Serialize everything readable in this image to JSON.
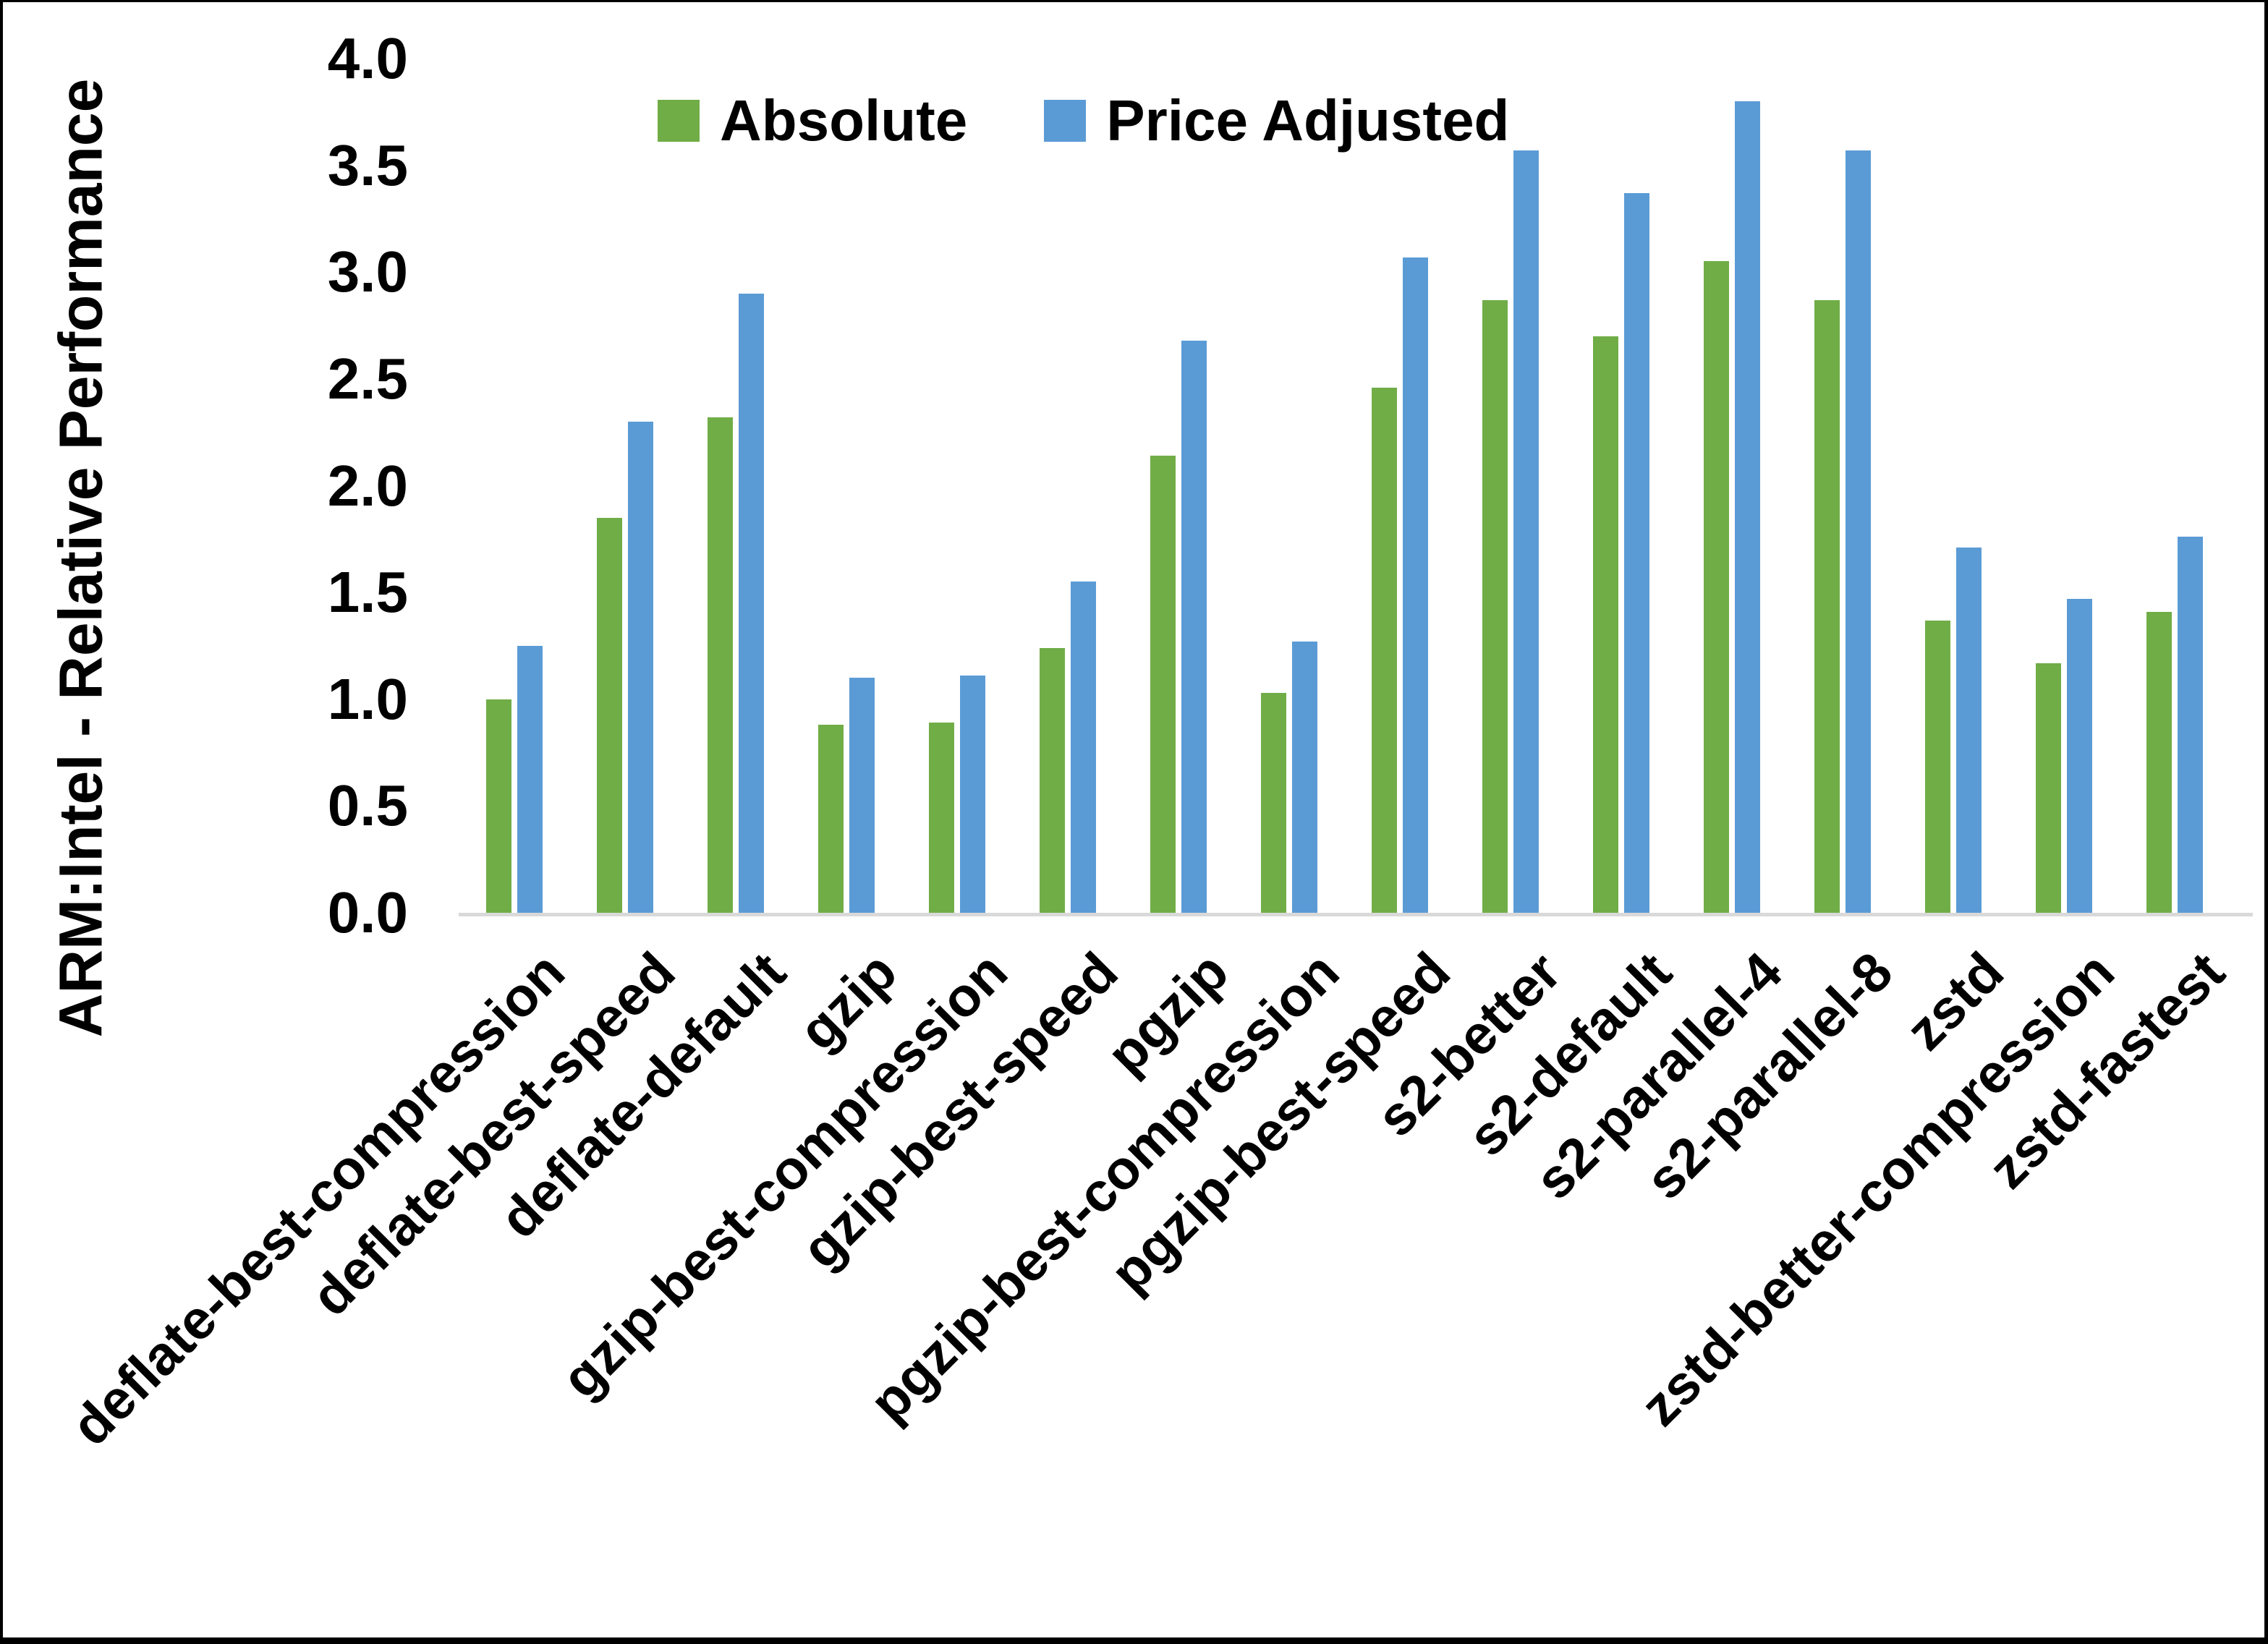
{
  "chart_data": {
    "type": "bar",
    "title": "",
    "xlabel": "",
    "ylabel": "ARM:Intel - Relative Performance",
    "ylim": [
      0.0,
      4.0
    ],
    "ytick_labels": [
      "4.0",
      "3.5",
      "3.0",
      "2.5",
      "2.0",
      "1.5",
      "1.0",
      "0.5",
      "0.0"
    ],
    "grid": false,
    "legend_position": "top-center",
    "categories": [
      "deflate-best-compression",
      "deflate-best-speed",
      "deflate-default",
      "gzip",
      "gzip-best-compression",
      "gzip-best-speed",
      "pgzip",
      "pgzip-best-compression",
      "pgzip-best-speed",
      "s2-better",
      "s2-default",
      "s2-parallel-4",
      "s2-parallel-8",
      "zstd",
      "zstd-better-compression",
      "zstd-fastest"
    ],
    "series": [
      {
        "name": "Absolute",
        "color": "#70AD47",
        "values": [
          1.0,
          1.85,
          2.32,
          0.88,
          0.89,
          1.24,
          2.14,
          1.03,
          2.46,
          2.87,
          2.7,
          3.05,
          2.87,
          1.37,
          1.17,
          1.41
        ]
      },
      {
        "name": "Price Adjusted",
        "color": "#5B9BD5",
        "values": [
          1.25,
          2.3,
          2.9,
          1.1,
          1.11,
          1.55,
          2.68,
          1.27,
          3.07,
          3.57,
          3.37,
          3.8,
          3.57,
          1.71,
          1.47,
          1.76
        ]
      }
    ]
  },
  "colors": {
    "axis_line": "#D9D9D9",
    "text": "#000000",
    "background": "#FFFFFF",
    "frame": "#000000"
  }
}
